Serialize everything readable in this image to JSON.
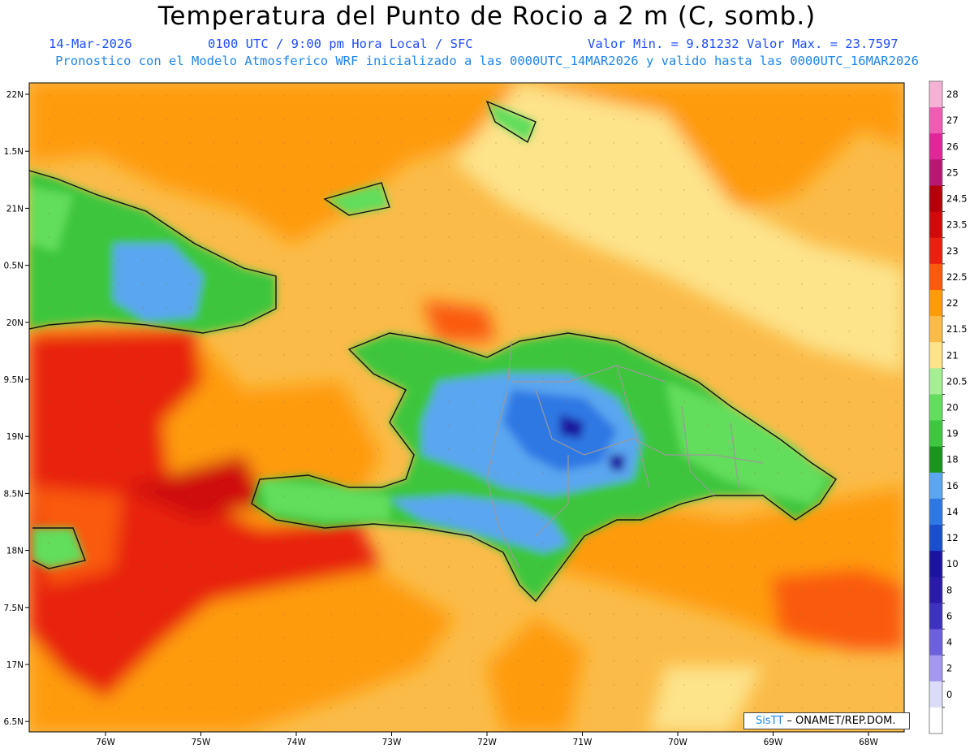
{
  "header": {
    "title": "Temperatura del Punto de Rocio a 2 m (C, somb.)",
    "date": "14-Mar-2026",
    "time": "0100 UTC / 9:00 pm Hora Local / SFC",
    "min_max": "Valor Min. = 9.81232  Valor Max. = 23.7597",
    "model": "Pronostico con el Modelo Atmosferico WRF inicializado a las 0000UTC_14MAR2026 y valido hasta las  0000UTC_16MAR2026"
  },
  "map": {
    "lat_labels": [
      "22N",
      "1.5N",
      "21N",
      "0.5N",
      "20N",
      "9.5N",
      "19N",
      "8.5N",
      "18N",
      "7.5N",
      "17N",
      "6.5N"
    ],
    "lon_labels": [
      "76W",
      "75W",
      "74W",
      "73W",
      "72W",
      "71W",
      "70W",
      "69W",
      "68W"
    ],
    "colorbar": {
      "labels": [
        "28",
        "27",
        "26",
        "25",
        "24.5",
        "23.5",
        "23",
        "22.5",
        "22",
        "21.5",
        "21",
        "20.5",
        "20",
        "19",
        "18",
        "16",
        "14",
        "12",
        "10",
        "8",
        "6",
        "4",
        "2",
        "0"
      ],
      "colors": [
        "#f6b2d6",
        "#ee5cb4",
        "#e0279a",
        "#b81874",
        "#b4000a",
        "#cf0a0a",
        "#e8210f",
        "#fa5a0c",
        "#fe9b0a",
        "#fbbb48",
        "#fde38a",
        "#a6ee94",
        "#62dd5c",
        "#3ec63e",
        "#1a961e",
        "#5aa6f0",
        "#2e78e4",
        "#1a4fcc",
        "#1a14a0",
        "#2a1aa8",
        "#3c32be",
        "#6c60dc",
        "#a497f0",
        "#dcdcfa",
        "#ffffff"
      ]
    },
    "credit_logo": "SisTT",
    "credit_text": " – ONAMET/REP.DOM."
  }
}
